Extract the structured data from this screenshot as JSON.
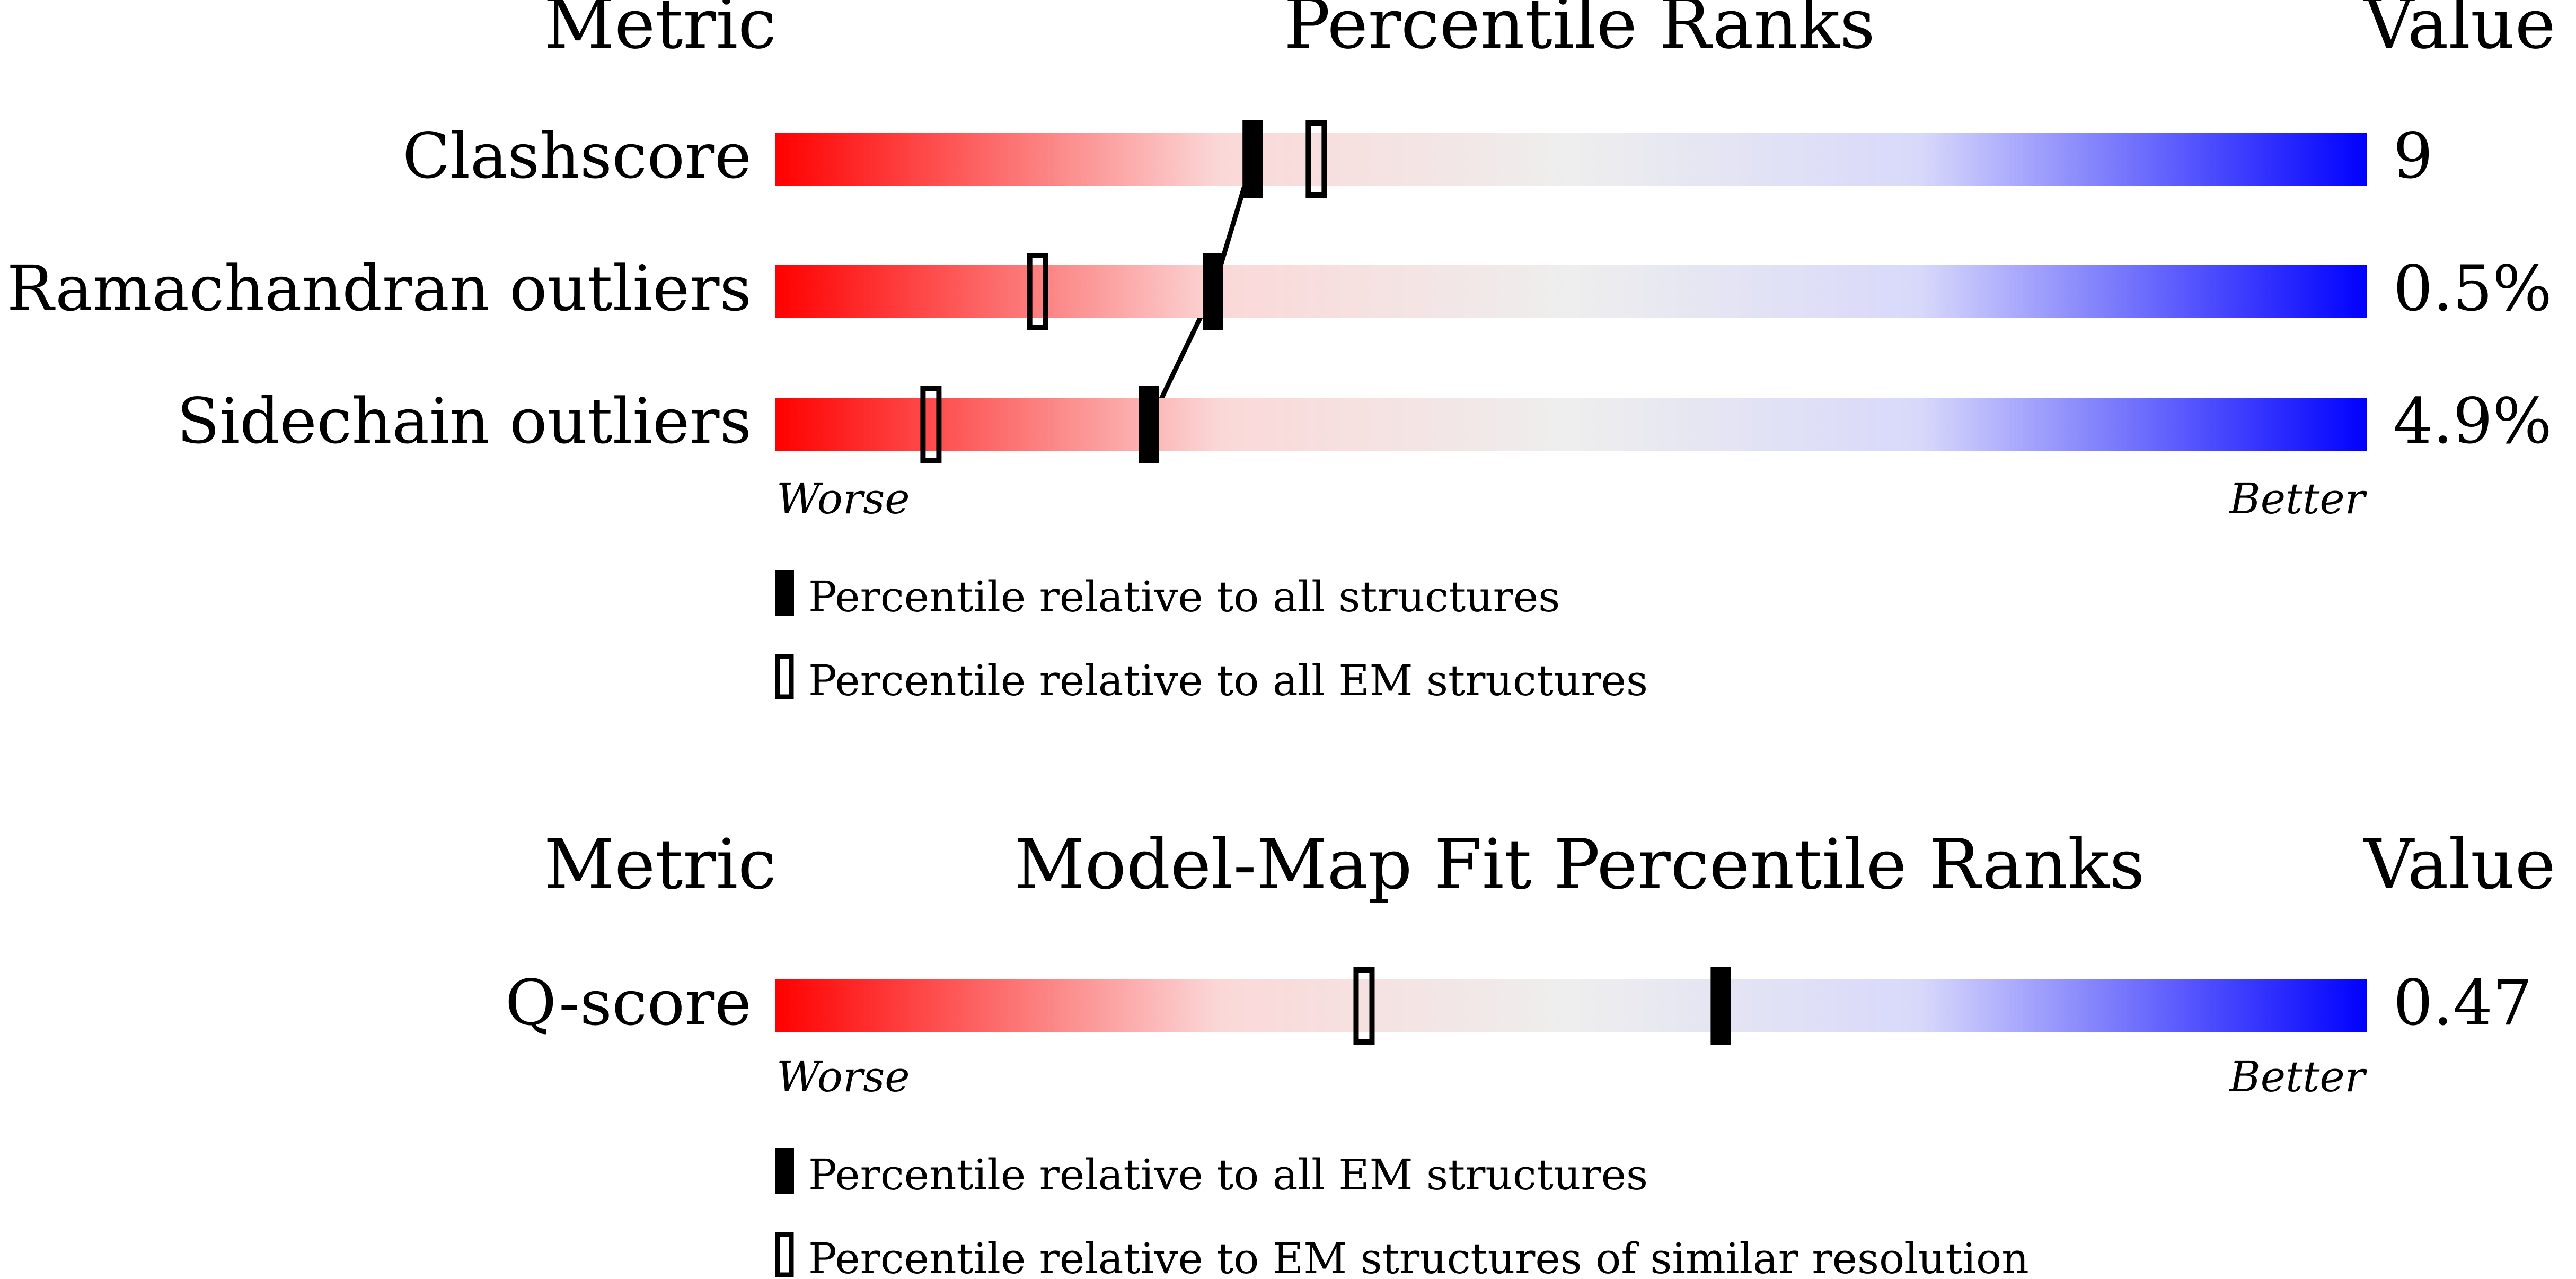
{
  "colors": {
    "worse": "#ff0000",
    "mid_light": "#fbd8d8",
    "neutral": "#eeeeee",
    "mid_blue": "#d8d8fb",
    "better": "#0000ff",
    "marker": "#000000"
  },
  "chart_data": [
    {
      "type": "percentile-bar",
      "headers": {
        "metric": "Metric",
        "title": "Percentile Ranks",
        "value": "Value"
      },
      "x_range": [
        0,
        100
      ],
      "axis_labels": {
        "worse": "Worse",
        "better": "Better"
      },
      "series": [
        {
          "name": "Percentile relative to all structures",
          "marker": "filled",
          "connected": true
        },
        {
          "name": "Percentile relative to all EM structures",
          "marker": "hollow",
          "connected": false
        }
      ],
      "metrics": [
        {
          "label": "Clashscore",
          "value": "9",
          "percentiles": [
            30,
            34
          ]
        },
        {
          "label": "Ramachandran outliers",
          "value": "0.5%",
          "percentiles": [
            27.5,
            16.5
          ]
        },
        {
          "label": "Sidechain outliers",
          "value": "4.9%",
          "percentiles": [
            23.5,
            9.8
          ]
        }
      ]
    },
    {
      "type": "percentile-bar",
      "headers": {
        "metric": "Metric",
        "title": "Model-Map Fit Percentile Ranks",
        "value": "Value"
      },
      "x_range": [
        0,
        100
      ],
      "axis_labels": {
        "worse": "Worse",
        "better": "Better"
      },
      "series": [
        {
          "name": "Percentile relative to all EM structures",
          "marker": "filled",
          "connected": false
        },
        {
          "name": "Percentile relative to EM structures of similar resolution",
          "marker": "hollow",
          "connected": false
        }
      ],
      "metrics": [
        {
          "label": "Q-score",
          "value": "0.47",
          "percentiles": [
            59.4,
            37
          ]
        }
      ]
    }
  ]
}
